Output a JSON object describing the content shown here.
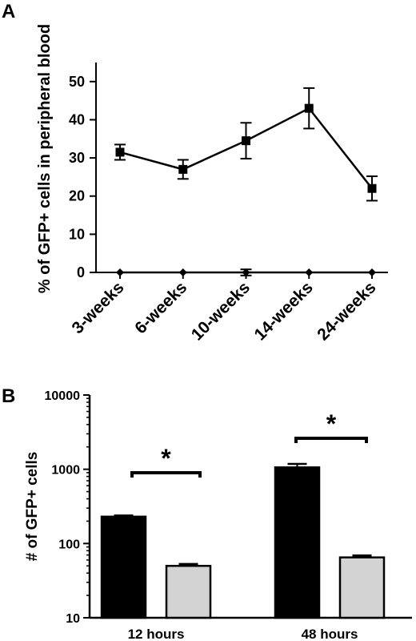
{
  "chart_data": [
    {
      "panel": "A",
      "type": "line",
      "ylabel": "% of GFP+ cells in peripheral blood",
      "categories": [
        "3-weeks",
        "6-weeks",
        "10-weeks",
        "14-weeks",
        "24-weeks"
      ],
      "ylim": [
        0,
        55
      ],
      "yticks": [
        0,
        10,
        20,
        30,
        40,
        50
      ],
      "series": [
        {
          "marker": "square",
          "values": [
            31.5,
            27,
            34.5,
            43,
            22
          ],
          "errors": [
            2,
            2.5,
            4.7,
            5.3,
            3.2
          ]
        },
        {
          "marker": "diamond",
          "values": [
            0,
            0,
            0,
            0,
            0
          ],
          "errors": [
            0,
            0,
            0.8,
            0,
            0
          ]
        }
      ],
      "grid": false
    },
    {
      "panel": "B",
      "type": "bar",
      "ylabel": "# of GFP+ cells",
      "categories": [
        "12 hours",
        "48 hours"
      ],
      "yscale": "log",
      "ylim": [
        10,
        10000
      ],
      "yticks": [
        10,
        100,
        1000,
        10000
      ],
      "series": [
        {
          "color": "#000000",
          "values": [
            230,
            1060
          ],
          "errors": [
            8,
            120
          ]
        },
        {
          "color": "#d3d3d3",
          "values": [
            50,
            65
          ],
          "errors": [
            3,
            4
          ]
        }
      ],
      "annotations": [
        "*",
        "*"
      ],
      "grid": false
    }
  ]
}
